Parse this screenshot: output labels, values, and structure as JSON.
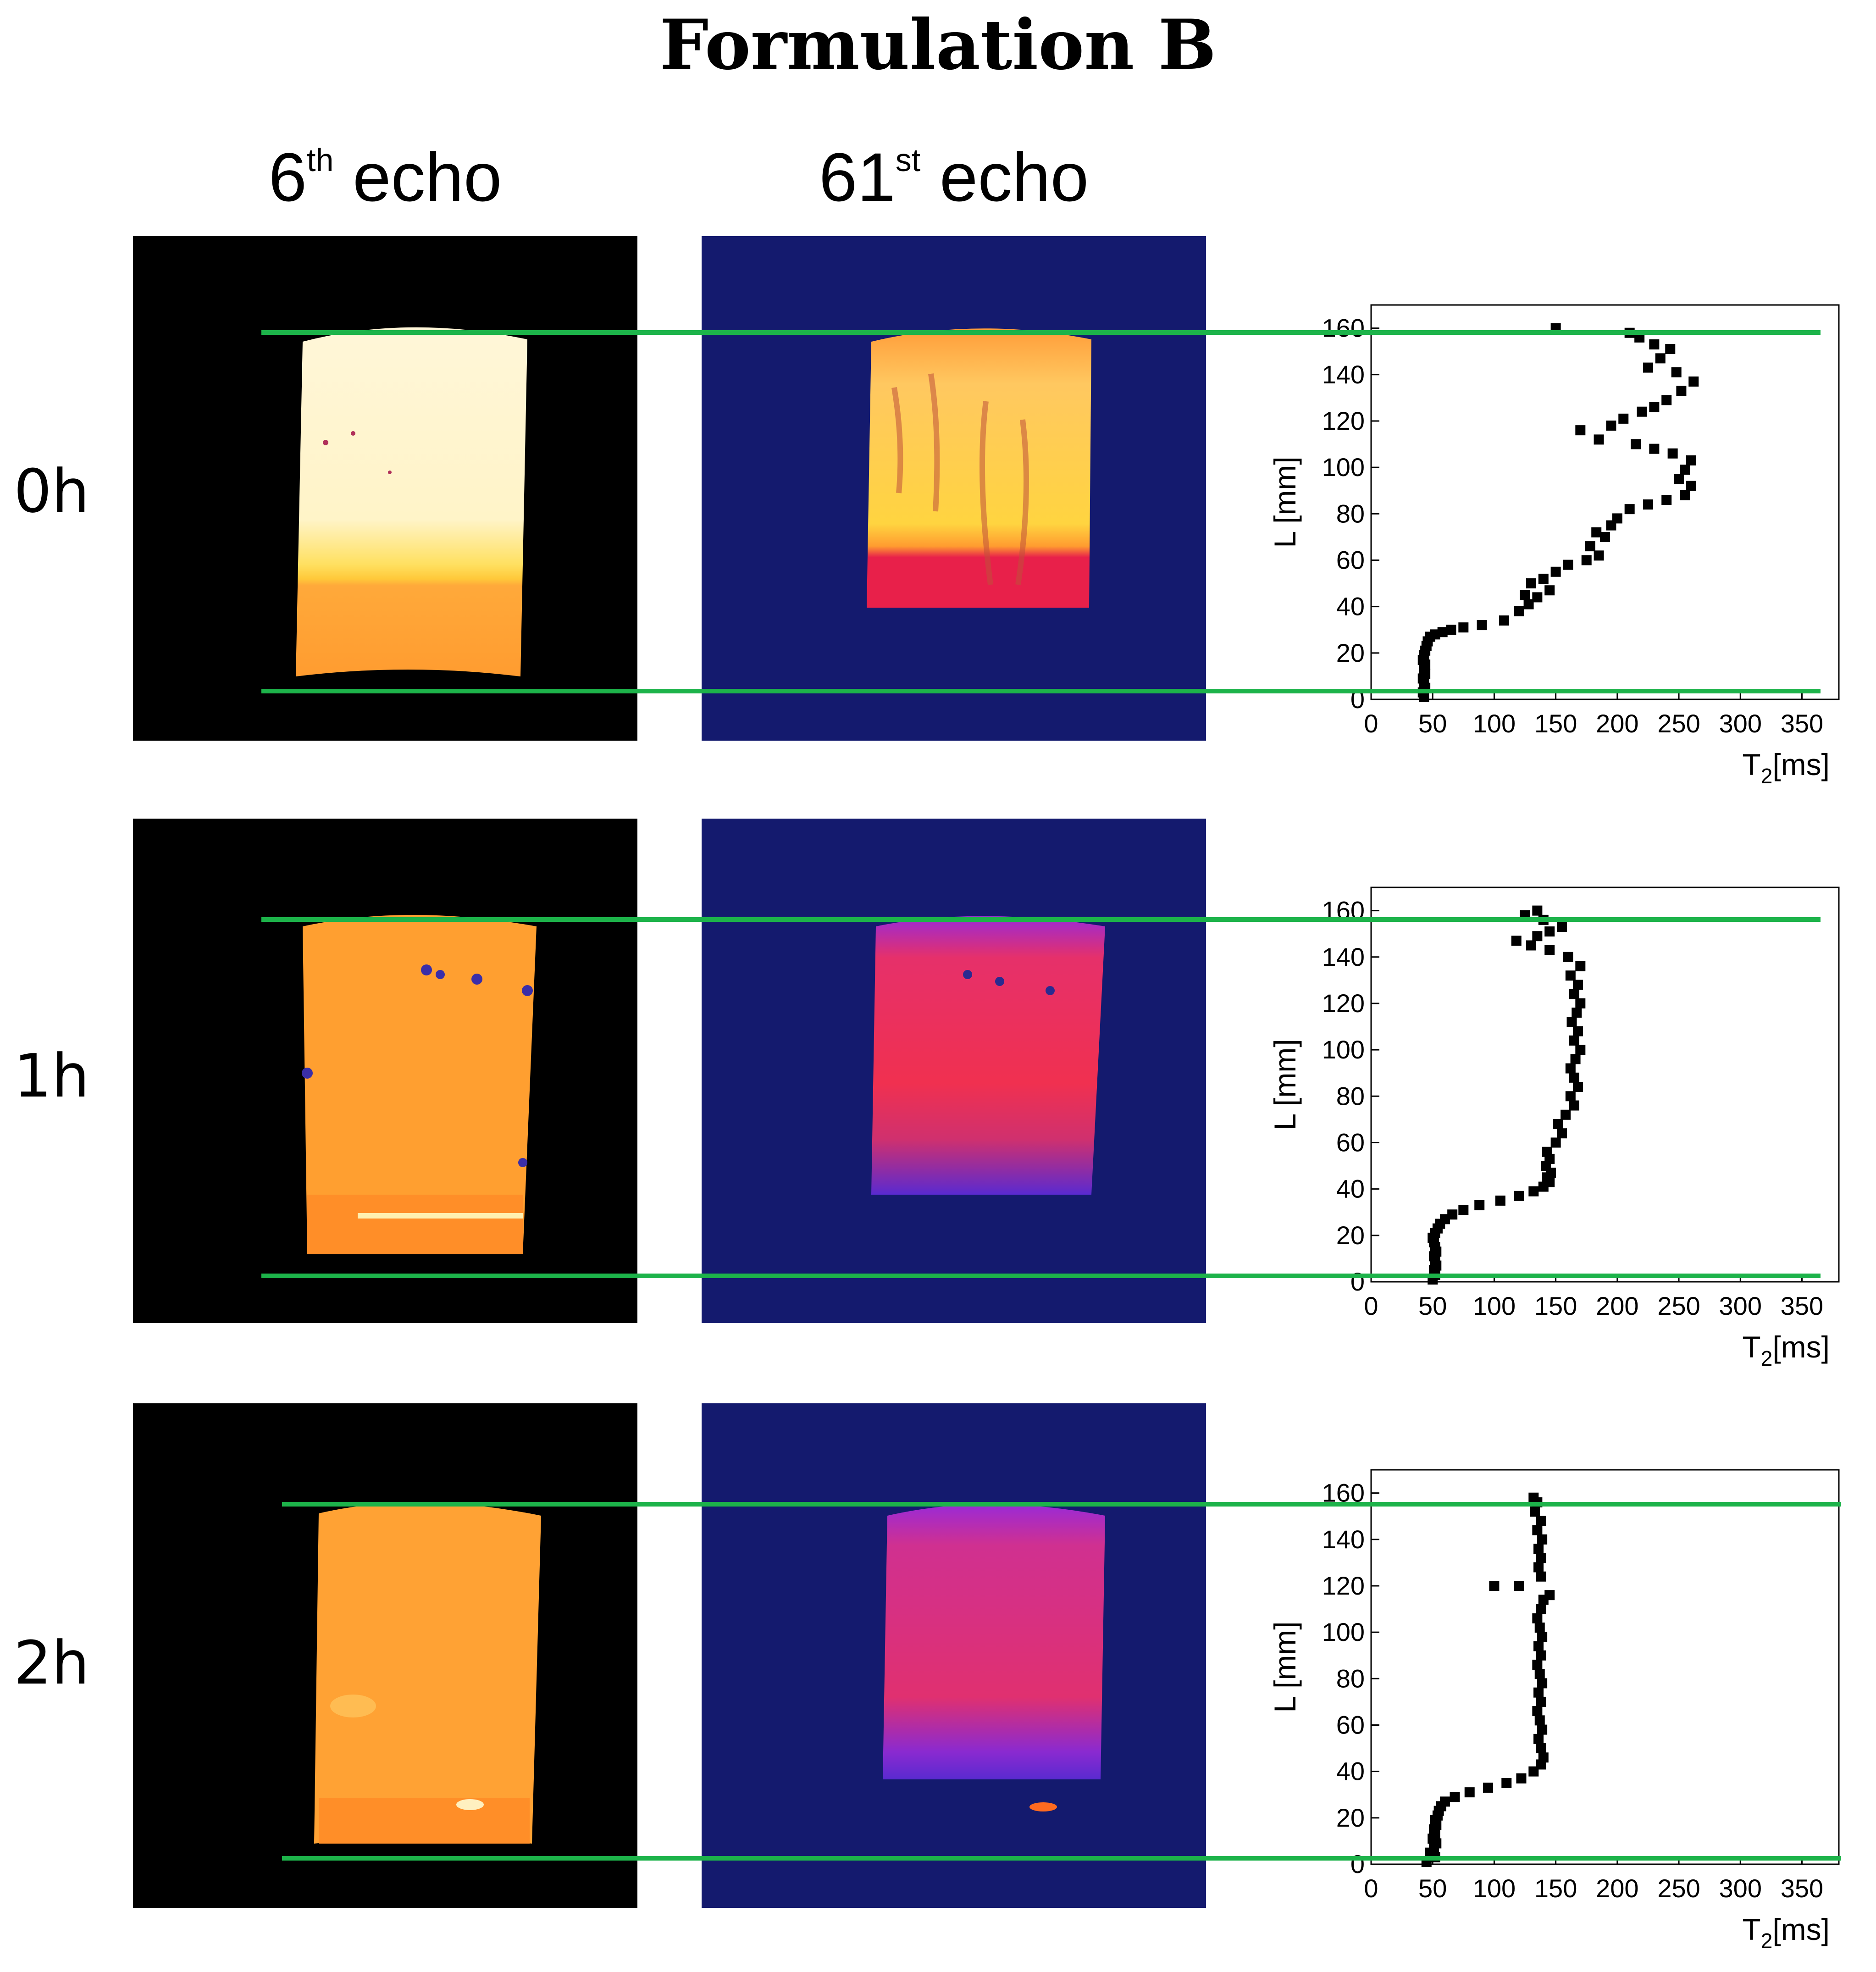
{
  "title": "Formulation B",
  "columns": {
    "col1": {
      "base": "6",
      "sup": "th",
      "suffix": " echo"
    },
    "col2": {
      "base": "61",
      "sup": "st",
      "suffix": " echo"
    }
  },
  "rows": [
    {
      "label": "0h"
    },
    {
      "label": "1h"
    },
    {
      "label": "2h"
    }
  ],
  "colors": {
    "guide_line": "#1db34a",
    "marker": "#000000",
    "echo6_bg": "#000000",
    "echo61_bg": "#141a6e"
  },
  "chart_data": [
    {
      "type": "scatter",
      "row": "0h",
      "xlabel": "T2[ms]",
      "ylabel": "L [mm]",
      "xlim": [
        0,
        380
      ],
      "ylim": [
        0,
        170
      ],
      "xticks": [
        0,
        50,
        100,
        150,
        200,
        250,
        300,
        350
      ],
      "yticks": [
        0,
        20,
        40,
        60,
        80,
        100,
        120,
        140,
        160
      ],
      "points": [
        [
          43,
          1
        ],
        [
          42,
          3
        ],
        [
          44,
          5
        ],
        [
          43,
          7
        ],
        [
          42,
          9
        ],
        [
          44,
          11
        ],
        [
          43,
          13
        ],
        [
          44,
          15
        ],
        [
          42,
          17
        ],
        [
          43,
          19
        ],
        [
          44,
          21
        ],
        [
          45,
          23
        ],
        [
          46,
          25
        ],
        [
          48,
          27
        ],
        [
          52,
          28
        ],
        [
          58,
          29
        ],
        [
          65,
          30
        ],
        [
          75,
          31
        ],
        [
          90,
          32
        ],
        [
          108,
          34
        ],
        [
          120,
          38
        ],
        [
          128,
          41
        ],
        [
          135,
          44
        ],
        [
          125,
          45
        ],
        [
          145,
          47
        ],
        [
          130,
          50
        ],
        [
          140,
          52
        ],
        [
          150,
          55
        ],
        [
          160,
          58
        ],
        [
          175,
          60
        ],
        [
          185,
          62
        ],
        [
          178,
          66
        ],
        [
          190,
          70
        ],
        [
          183,
          72
        ],
        [
          195,
          75
        ],
        [
          200,
          78
        ],
        [
          210,
          82
        ],
        [
          225,
          84
        ],
        [
          240,
          86
        ],
        [
          255,
          88
        ],
        [
          260,
          92
        ],
        [
          250,
          95
        ],
        [
          255,
          99
        ],
        [
          260,
          103
        ],
        [
          245,
          106
        ],
        [
          230,
          108
        ],
        [
          215,
          110
        ],
        [
          185,
          112
        ],
        [
          170,
          116
        ],
        [
          195,
          118
        ],
        [
          205,
          121
        ],
        [
          220,
          124
        ],
        [
          230,
          126
        ],
        [
          240,
          129
        ],
        [
          252,
          133
        ],
        [
          262,
          137
        ],
        [
          248,
          141
        ],
        [
          225,
          143
        ],
        [
          235,
          147
        ],
        [
          243,
          151
        ],
        [
          230,
          153
        ],
        [
          218,
          156
        ],
        [
          210,
          158
        ],
        [
          150,
          160
        ]
      ]
    },
    {
      "type": "scatter",
      "row": "1h",
      "xlabel": "T2[ms]",
      "ylabel": "L [mm]",
      "xlim": [
        0,
        380
      ],
      "ylim": [
        0,
        170
      ],
      "xticks": [
        0,
        50,
        100,
        150,
        200,
        250,
        300,
        350
      ],
      "yticks": [
        0,
        20,
        40,
        60,
        80,
        100,
        120,
        140,
        160
      ],
      "points": [
        [
          50,
          1
        ],
        [
          52,
          3
        ],
        [
          51,
          5
        ],
        [
          53,
          7
        ],
        [
          52,
          9
        ],
        [
          51,
          11
        ],
        [
          53,
          13
        ],
        [
          52,
          15
        ],
        [
          51,
          17
        ],
        [
          50,
          19
        ],
        [
          52,
          21
        ],
        [
          54,
          23
        ],
        [
          56,
          25
        ],
        [
          60,
          27
        ],
        [
          66,
          29
        ],
        [
          75,
          31
        ],
        [
          88,
          33
        ],
        [
          105,
          35
        ],
        [
          120,
          37
        ],
        [
          132,
          39
        ],
        [
          140,
          41
        ],
        [
          145,
          43
        ],
        [
          143,
          45
        ],
        [
          146,
          47
        ],
        [
          142,
          50
        ],
        [
          145,
          53
        ],
        [
          143,
          56
        ],
        [
          150,
          60
        ],
        [
          155,
          64
        ],
        [
          152,
          68
        ],
        [
          158,
          72
        ],
        [
          165,
          76
        ],
        [
          162,
          80
        ],
        [
          168,
          84
        ],
        [
          165,
          88
        ],
        [
          162,
          92
        ],
        [
          166,
          96
        ],
        [
          170,
          100
        ],
        [
          165,
          104
        ],
        [
          168,
          108
        ],
        [
          163,
          112
        ],
        [
          167,
          116
        ],
        [
          170,
          120
        ],
        [
          165,
          124
        ],
        [
          168,
          128
        ],
        [
          162,
          132
        ],
        [
          170,
          136
        ],
        [
          160,
          140
        ],
        [
          145,
          143
        ],
        [
          130,
          145
        ],
        [
          118,
          147
        ],
        [
          135,
          149
        ],
        [
          145,
          151
        ],
        [
          155,
          153
        ],
        [
          140,
          156
        ],
        [
          125,
          158
        ],
        [
          135,
          160
        ]
      ]
    },
    {
      "type": "scatter",
      "row": "2h",
      "xlabel": "T2[ms]",
      "ylabel": "L [mm]",
      "xlim": [
        0,
        380
      ],
      "ylim": [
        0,
        170
      ],
      "xticks": [
        0,
        50,
        100,
        150,
        200,
        250,
        300,
        350
      ],
      "yticks": [
        0,
        20,
        40,
        60,
        80,
        100,
        120,
        140,
        160
      ],
      "points": [
        [
          45,
          1
        ],
        [
          52,
          3
        ],
        [
          48,
          5
        ],
        [
          51,
          7
        ],
        [
          53,
          9
        ],
        [
          50,
          11
        ],
        [
          52,
          13
        ],
        [
          51,
          15
        ],
        [
          53,
          17
        ],
        [
          52,
          19
        ],
        [
          54,
          21
        ],
        [
          55,
          23
        ],
        [
          57,
          25
        ],
        [
          60,
          27
        ],
        [
          68,
          29
        ],
        [
          80,
          31
        ],
        [
          95,
          33
        ],
        [
          110,
          35
        ],
        [
          122,
          37
        ],
        [
          132,
          40
        ],
        [
          138,
          43
        ],
        [
          140,
          46
        ],
        [
          138,
          50
        ],
        [
          136,
          54
        ],
        [
          139,
          58
        ],
        [
          137,
          62
        ],
        [
          135,
          66
        ],
        [
          138,
          70
        ],
        [
          136,
          74
        ],
        [
          139,
          78
        ],
        [
          137,
          82
        ],
        [
          135,
          86
        ],
        [
          138,
          90
        ],
        [
          136,
          94
        ],
        [
          139,
          98
        ],
        [
          137,
          102
        ],
        [
          135,
          106
        ],
        [
          138,
          110
        ],
        [
          140,
          114
        ],
        [
          145,
          116
        ],
        [
          120,
          120
        ],
        [
          100,
          120
        ],
        [
          138,
          124
        ],
        [
          136,
          128
        ],
        [
          138,
          132
        ],
        [
          136,
          136
        ],
        [
          139,
          140
        ],
        [
          135,
          144
        ],
        [
          138,
          148
        ],
        [
          133,
          152
        ],
        [
          135,
          156
        ],
        [
          132,
          158
        ]
      ]
    }
  ]
}
